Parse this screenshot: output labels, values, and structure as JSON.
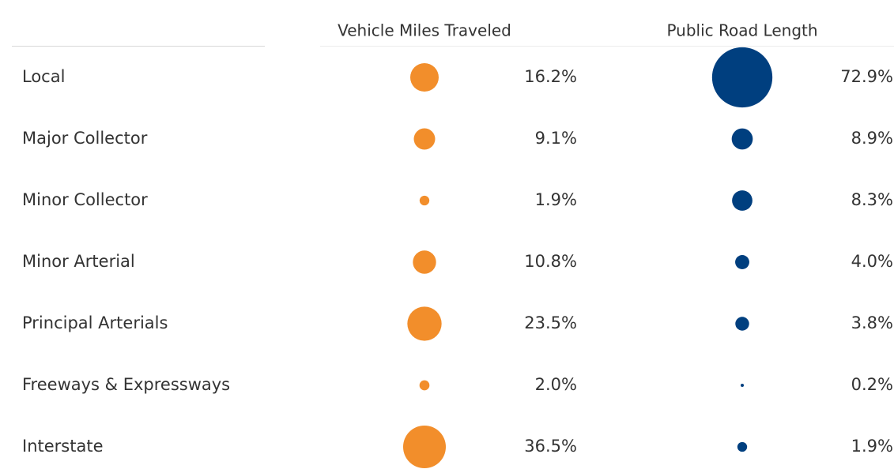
{
  "chart_data": {
    "type": "bubble",
    "categories": [
      "Local",
      "Major Collector",
      "Minor Collector",
      "Minor Arterial",
      "Principal Arterials",
      "Freeways & Expressways",
      "Interstate"
    ],
    "series": [
      {
        "name": "Vehicle Miles Traveled",
        "color": "#f28e2b",
        "values": [
          16.2,
          9.1,
          1.9,
          10.8,
          23.5,
          2.0,
          36.5
        ],
        "value_labels": [
          "16.2%",
          "9.1%",
          "1.9%",
          "10.8%",
          "23.5%",
          "2.0%",
          "36.5%"
        ]
      },
      {
        "name": "Public Road Length",
        "color": "#003f7f",
        "values": [
          72.9,
          8.9,
          8.3,
          4.0,
          3.8,
          0.2,
          1.9
        ],
        "value_labels": [
          "72.9%",
          "8.9%",
          "8.3%",
          "4.0%",
          "3.8%",
          "0.2%",
          "1.9%"
        ]
      }
    ]
  }
}
